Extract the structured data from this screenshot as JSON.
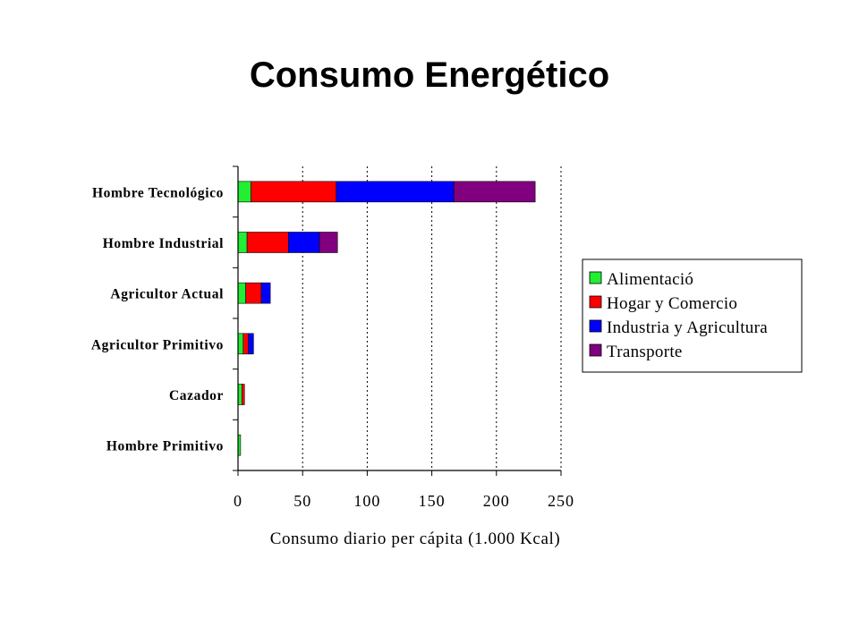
{
  "slide": {
    "title": "Consumo Energético"
  },
  "chart_data": {
    "type": "bar",
    "orientation": "horizontal",
    "stacked": true,
    "title": "",
    "xlabel": "Consumo diario per cápita (1.000 Kcal)",
    "ylabel": "",
    "xlim": [
      0,
      250
    ],
    "xticks": [
      0,
      50,
      100,
      150,
      200,
      250
    ],
    "grid": "vertical dotted",
    "legend_position": "right",
    "categories": [
      "Hombre Tecnológico",
      "Hombre Industrial",
      "Agricultor Actual",
      "Agricultor Primitivo",
      "Cazador",
      "Hombre Primitivo"
    ],
    "series": [
      {
        "name": "Alimentació",
        "color": "#22ee33",
        "values": [
          10,
          7,
          6,
          4,
          3,
          2
        ]
      },
      {
        "name": "Hogar y Comercio",
        "color": "#ff0000",
        "values": [
          66,
          32,
          12,
          4,
          2,
          0
        ]
      },
      {
        "name": "Industria y Agricultura",
        "color": "#0000ff",
        "values": [
          91,
          24,
          7,
          4,
          0,
          0
        ]
      },
      {
        "name": "Transporte",
        "color": "#800080",
        "values": [
          63,
          14,
          0,
          0,
          0,
          0
        ]
      }
    ]
  }
}
